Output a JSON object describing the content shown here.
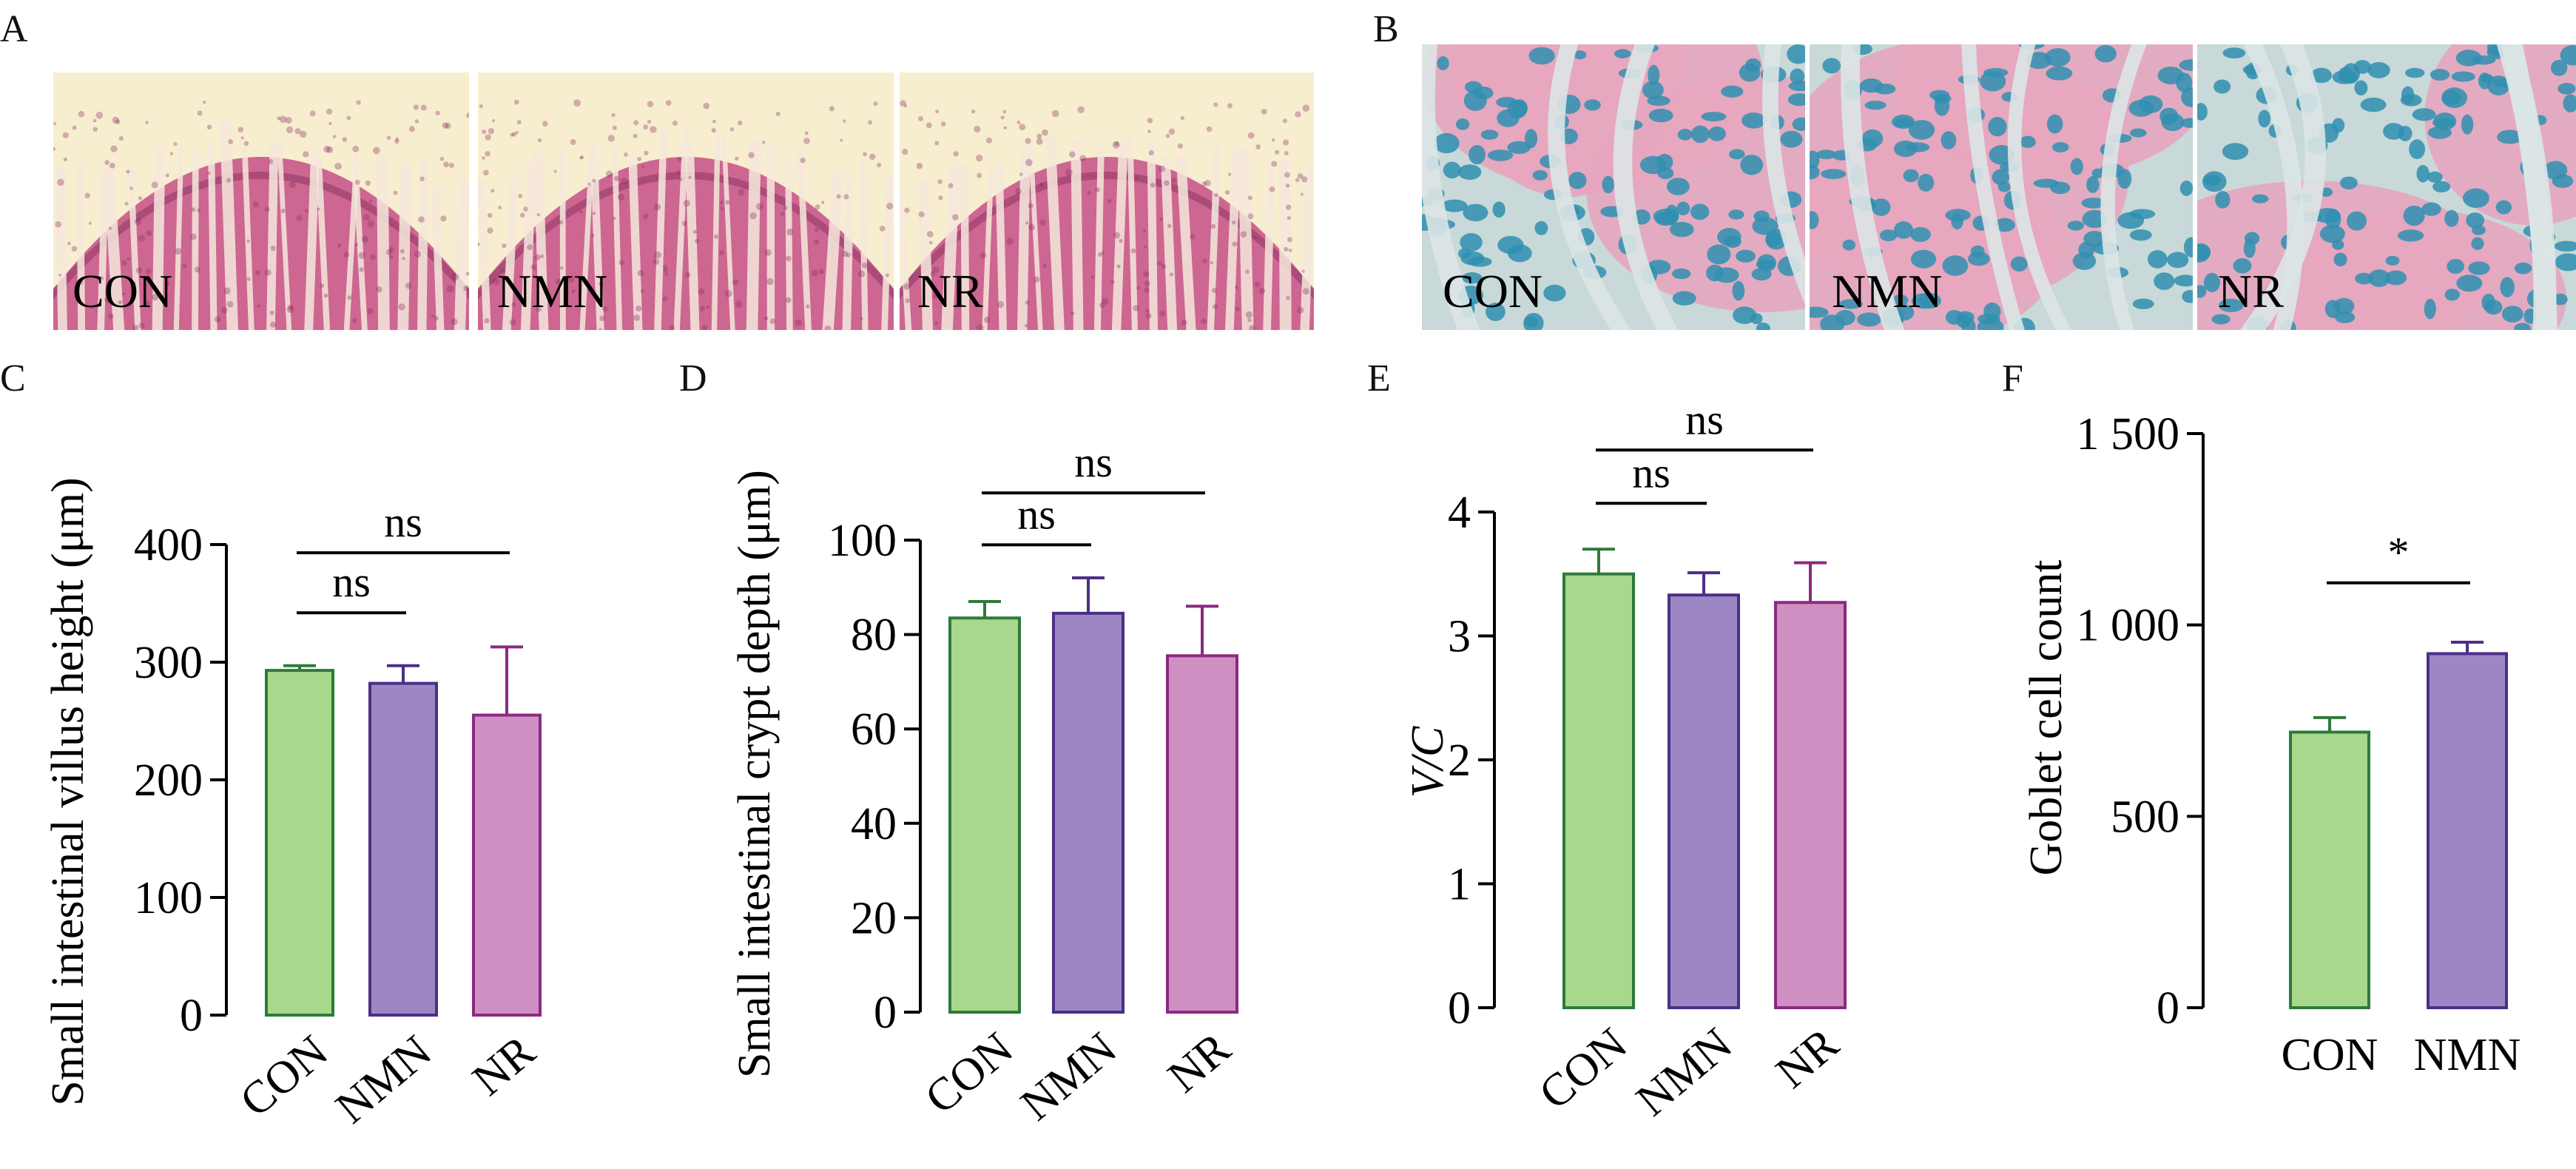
{
  "colors": {
    "con_fill": "#a8d88c",
    "con_stroke": "#2e7a3a",
    "nmn_fill": "#9c87c4",
    "nmn_stroke": "#4b2f86",
    "nr_fill": "#cf8fc2",
    "nr_stroke": "#8a2a80",
    "he_bg": "#f7eecf",
    "he_tissue": "#c8578a",
    "he_dark": "#8a2f62",
    "he_lumen": "#f6e9dd",
    "ab_bg": "#c9d8d8",
    "ab_tissue": "#e6a6bf",
    "ab_blue": "#2f8fb0",
    "ab_lumen": "#dbe6e6"
  },
  "panels": {
    "A": {
      "letter": "A",
      "images": [
        {
          "label": "CON",
          "stain": "he",
          "seed": 3
        },
        {
          "label": "NMN",
          "stain": "he",
          "seed": 7
        },
        {
          "label": "NR",
          "stain": "he",
          "seed": 11
        }
      ]
    },
    "B": {
      "letter": "B",
      "images": [
        {
          "label": "CON",
          "stain": "ab",
          "seed": 5
        },
        {
          "label": "NMN",
          "stain": "ab",
          "seed": 9
        },
        {
          "label": "NR",
          "stain": "ab",
          "seed": 13
        }
      ]
    }
  },
  "chart_data": [
    {
      "panel": "C",
      "type": "bar",
      "ylabel": "Small intestinal villus height (μm)",
      "categories": [
        "CON",
        "NMN",
        "NR"
      ],
      "values": [
        293,
        282,
        255
      ],
      "errors": [
        4,
        15,
        58
      ],
      "ylim": [
        0,
        400
      ],
      "yticks": [
        0,
        100,
        200,
        300,
        400
      ],
      "ytick_labels": [
        "0",
        "100",
        "200",
        "300",
        "400"
      ],
      "rotate_labels": true,
      "comparisons": [
        {
          "from": 0,
          "to": 1,
          "label": "ns",
          "y": 342
        },
        {
          "from": 0,
          "to": 2,
          "label": "ns",
          "y": 393
        }
      ]
    },
    {
      "panel": "D",
      "type": "bar",
      "ylabel": "Small intestinal crypt depth (μm)",
      "categories": [
        "CON",
        "NMN",
        "NR"
      ],
      "values": [
        83.5,
        84.5,
        75.5
      ],
      "errors": [
        3.5,
        7.5,
        10.5
      ],
      "ylim": [
        0,
        100
      ],
      "yticks": [
        0,
        20,
        40,
        60,
        80,
        100
      ],
      "ytick_labels": [
        "0",
        "20",
        "40",
        "60",
        "80",
        "100"
      ],
      "rotate_labels": true,
      "comparisons": [
        {
          "from": 0,
          "to": 1,
          "label": "ns",
          "y": 99
        },
        {
          "from": 0,
          "to": 2,
          "label": "ns",
          "y": 110
        }
      ]
    },
    {
      "panel": "E",
      "type": "bar",
      "ylabel": "V/C",
      "categories": [
        "CON",
        "NMN",
        "NR"
      ],
      "values": [
        3.5,
        3.33,
        3.27
      ],
      "errors": [
        0.2,
        0.18,
        0.32
      ],
      "ylim": [
        0,
        4
      ],
      "yticks": [
        0,
        1,
        2,
        3,
        4
      ],
      "ytick_labels": [
        "0",
        "1",
        "2",
        "3",
        "4"
      ],
      "rotate_labels": true,
      "comparisons": [
        {
          "from": 0,
          "to": 1,
          "label": "ns",
          "y": 4.07
        },
        {
          "from": 0,
          "to": 2,
          "label": "ns",
          "y": 4.5
        }
      ]
    },
    {
      "panel": "F",
      "type": "bar",
      "ylabel": "Goblet cell count",
      "categories": [
        "CON",
        "NMN"
      ],
      "values": [
        720,
        925
      ],
      "errors": [
        38,
        30
      ],
      "ylim": [
        0,
        1500
      ],
      "yticks": [
        0,
        500,
        1000,
        1500
      ],
      "ytick_labels": [
        "0",
        "500",
        "1 000",
        "1 500"
      ],
      "rotate_labels": false,
      "comparisons": [
        {
          "from": 0,
          "to": 1,
          "label": "*",
          "y": 1110
        }
      ]
    }
  ]
}
